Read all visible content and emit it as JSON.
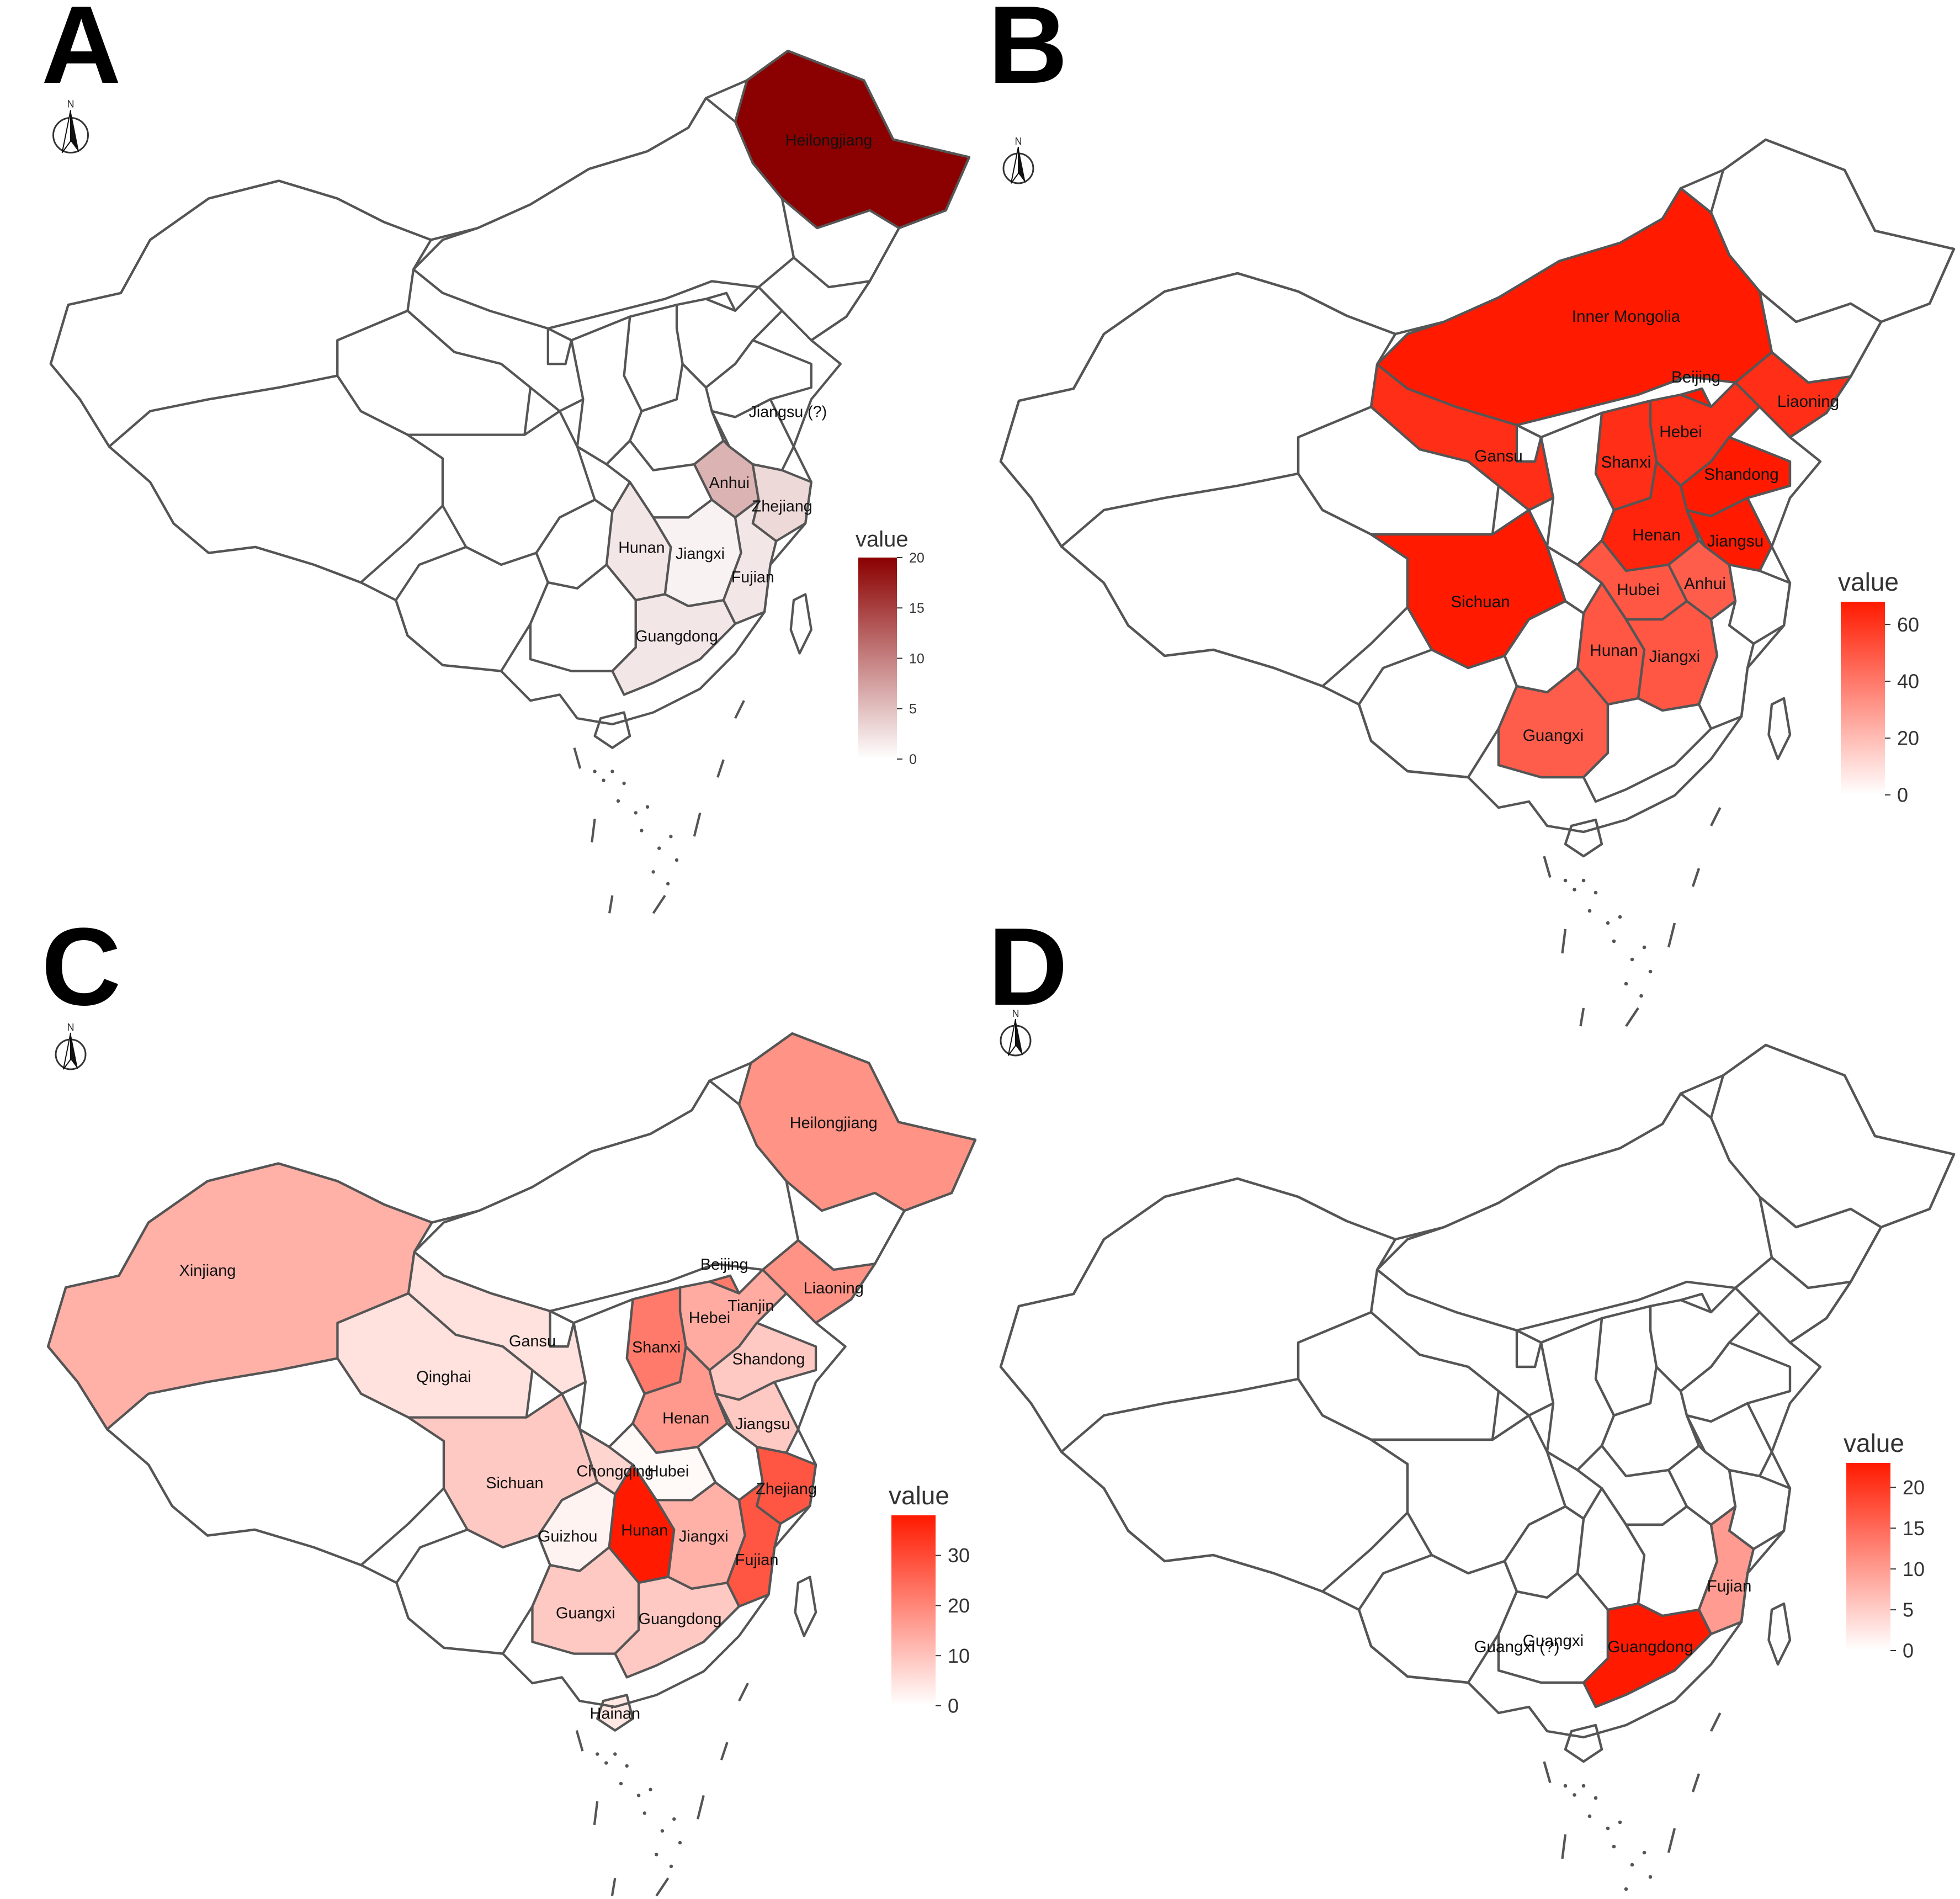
{
  "panels": [
    {
      "letter": "A",
      "legend": {
        "title": "value",
        "max": 20,
        "ticks": [
          "20",
          "15",
          "10",
          "5",
          "0"
        ],
        "high_color": "#8b0000"
      },
      "compass_label": "N",
      "regions": [
        {
          "name": "Heilongjiang",
          "value": 20
        },
        {
          "name": "Anhui",
          "value": 6
        },
        {
          "name": "Zhejiang",
          "value": 3
        },
        {
          "name": "Jiangxi",
          "value": 1
        },
        {
          "name": "Hunan",
          "value": 2
        },
        {
          "name": "Fujian",
          "value": 2
        },
        {
          "name": "Guangdong",
          "value": 2
        }
      ],
      "extra_labels": [
        "Jiangsu (?)"
      ]
    },
    {
      "letter": "B",
      "legend": {
        "title": "value",
        "max": 68,
        "ticks": [
          "60",
          "40",
          "20",
          "0"
        ],
        "high_color": "#ff1a00"
      },
      "compass_label": "N",
      "regions": [
        {
          "name": "Inner Mongolia",
          "value": 68
        },
        {
          "name": "Beijing",
          "value": 68
        },
        {
          "name": "Liaoning",
          "value": 62
        },
        {
          "name": "Hebei",
          "value": 62
        },
        {
          "name": "Shanxi",
          "value": 62
        },
        {
          "name": "Shandong",
          "value": 68
        },
        {
          "name": "Gansu",
          "value": 62
        },
        {
          "name": "Shanxi",
          "value": 62
        },
        {
          "name": "Henan",
          "value": 65
        },
        {
          "name": "Jiangsu",
          "value": 68
        },
        {
          "name": "Anhui",
          "value": 48
        },
        {
          "name": "Sichuan",
          "value": 68
        },
        {
          "name": "Hubei",
          "value": 50
        },
        {
          "name": "Hunan",
          "value": 50
        },
        {
          "name": "Jiangxi",
          "value": 50
        },
        {
          "name": "Guangxi",
          "value": 48
        }
      ]
    },
    {
      "letter": "C",
      "legend": {
        "title": "value",
        "max": 38,
        "ticks": [
          "30",
          "20",
          "10",
          "0"
        ],
        "high_color": "#ff1a00"
      },
      "compass_label": "N",
      "regions": [
        {
          "name": "Heilongjiang",
          "value": 18
        },
        {
          "name": "Xinjiang",
          "value": 13
        },
        {
          "name": "Liaoning",
          "value": 18
        },
        {
          "name": "Beijing",
          "value": 22
        },
        {
          "name": "Tianjin",
          "value": 16
        },
        {
          "name": "Hebei",
          "value": 14
        },
        {
          "name": "Shandong",
          "value": 9
        },
        {
          "name": "Qinghai",
          "value": 5
        },
        {
          "name": "Gansu",
          "value": 5
        },
        {
          "name": "Shanxi",
          "value": 22
        },
        {
          "name": "Henan",
          "value": 17
        },
        {
          "name": "Jiangsu",
          "value": 9
        },
        {
          "name": "Hubei",
          "value": 1
        },
        {
          "name": "Zhejiang",
          "value": 28
        },
        {
          "name": "Sichuan",
          "value": 9
        },
        {
          "name": "Chongqing",
          "value": 7
        },
        {
          "name": "Hunan",
          "value": 38
        },
        {
          "name": "Jiangxi",
          "value": 13
        },
        {
          "name": "Guizhou",
          "value": 2
        },
        {
          "name": "Fujian",
          "value": 28
        },
        {
          "name": "Guangxi",
          "value": 9
        },
        {
          "name": "Guangdong",
          "value": 9
        },
        {
          "name": "Hainan",
          "value": 4
        }
      ]
    },
    {
      "letter": "D",
      "legend": {
        "title": "value",
        "max": 23,
        "ticks": [
          "20",
          "15",
          "10",
          "5",
          "0"
        ],
        "high_color": "#ff1a00"
      },
      "compass_label": "N",
      "regions": [
        {
          "name": "Fujian",
          "value": 10
        },
        {
          "name": "Guangdong",
          "value": 23
        },
        {
          "name": "Guangxi",
          "value": 0
        }
      ],
      "extra_labels": [
        "Guangxi (?)"
      ]
    }
  ]
}
